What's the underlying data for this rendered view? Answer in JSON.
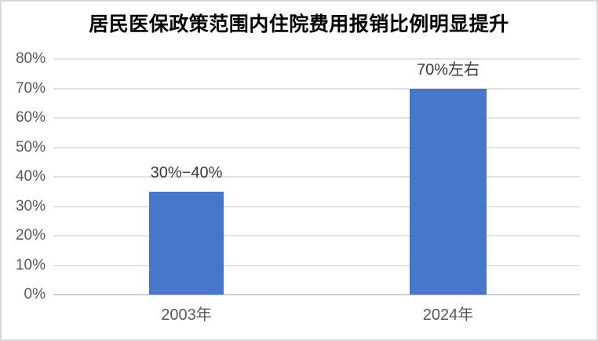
{
  "chart_data": {
    "type": "bar",
    "title": "居民医保政策范围内住院费用报销比例明显提升",
    "categories": [
      "2003年",
      "2024年"
    ],
    "values": [
      35,
      70
    ],
    "value_labels": [
      "30%−40%",
      "70%左右"
    ],
    "ylim": [
      0,
      80
    ],
    "ytick_labels": [
      "0%",
      "10%",
      "20%",
      "30%",
      "40%",
      "50%",
      "60%",
      "70%",
      "80%"
    ],
    "xlabel": "",
    "ylabel": "",
    "legend": "none",
    "grid": "horizontal",
    "colors": {
      "bar": "#4876C8",
      "gridline": "#e3e3e3",
      "baseline": "#d2d2d2",
      "axis_text": "#595959",
      "value_label_text": "#3a3a3a",
      "title_text": "#000000",
      "frame_border": "#d9d9d9",
      "background": "#ffffff"
    }
  }
}
